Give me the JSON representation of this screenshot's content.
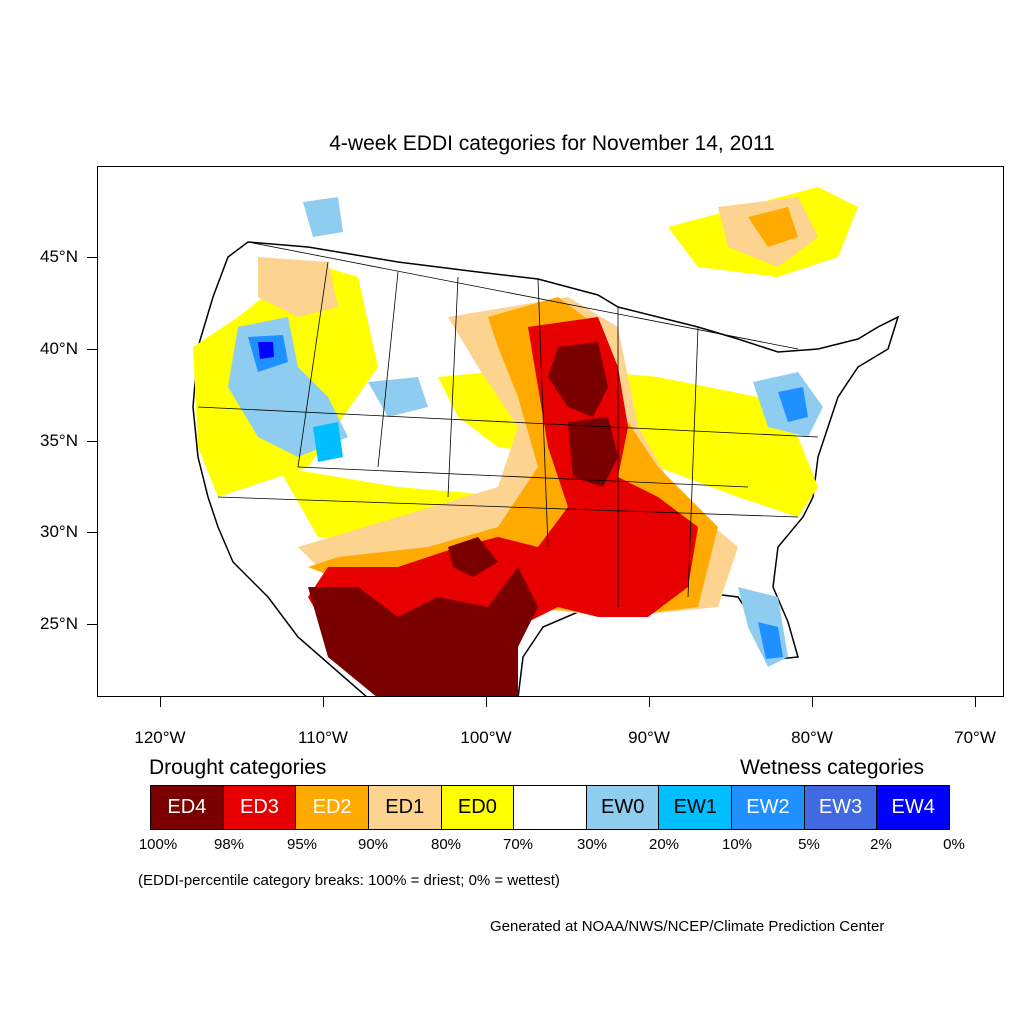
{
  "title": "4-week EDDI categories for November 14, 2011",
  "axes": {
    "lon_ticks": [
      "120°W",
      "110°W",
      "100°W",
      "90°W",
      "80°W",
      "70°W"
    ],
    "lat_ticks": [
      "45°N",
      "40°N",
      "35°N",
      "30°N",
      "25°N"
    ]
  },
  "legend": {
    "drought_heading": "Drought categories",
    "wetness_heading": "Wetness categories",
    "categories": [
      {
        "label": "ED4",
        "color": "#7a0000",
        "text_color": "#ffffff"
      },
      {
        "label": "ED3",
        "color": "#e60000",
        "text_color": "#ffffff"
      },
      {
        "label": "ED2",
        "color": "#ffaa00",
        "text_color": "#ffffff"
      },
      {
        "label": "ED1",
        "color": "#fcd38f",
        "text_color": "#000000"
      },
      {
        "label": "ED0",
        "color": "#ffff00",
        "text_color": "#000000"
      },
      {
        "label": "",
        "color": "#ffffff",
        "text_color": "#000000"
      },
      {
        "label": "EW0",
        "color": "#8fcdf0",
        "text_color": "#000000"
      },
      {
        "label": "EW1",
        "color": "#00bfff",
        "text_color": "#000000"
      },
      {
        "label": "EW2",
        "color": "#1e90ff",
        "text_color": "#ffffff"
      },
      {
        "label": "EW3",
        "color": "#4169e1",
        "text_color": "#ffffff"
      },
      {
        "label": "EW4",
        "color": "#0000ff",
        "text_color": "#ffffff"
      }
    ],
    "percentile_breaks": [
      "100%",
      "98%",
      "95%",
      "90%",
      "80%",
      "70%",
      "30%",
      "20%",
      "10%",
      "5%",
      "2%",
      "0%"
    ]
  },
  "note": "(EDDI-percentile category breaks: 100% = driest; 0% = wettest)",
  "credit": "Generated at NOAA/NWS/NCEP/Climate Prediction Center"
}
